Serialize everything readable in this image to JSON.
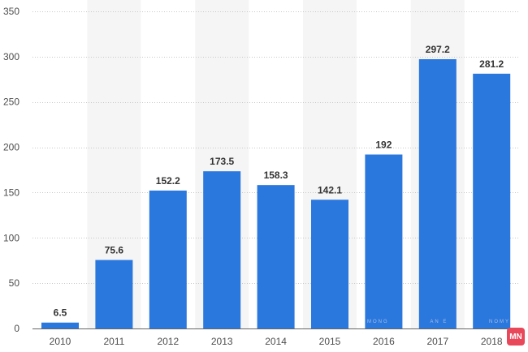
{
  "chart_data": {
    "type": "bar",
    "categories": [
      "2010",
      "2011",
      "2012",
      "2013",
      "2014",
      "2015",
      "2016",
      "2017",
      "2018"
    ],
    "values": [
      6.5,
      75.6,
      152.2,
      173.5,
      158.3,
      142.1,
      192,
      297.2,
      281.2
    ],
    "value_labels": [
      "6.5",
      "75.6",
      "152.2",
      "173.5",
      "158.3",
      "142.1",
      "192",
      "297.2",
      "281.2"
    ],
    "y_ticks": [
      0,
      50,
      100,
      150,
      200,
      250,
      300,
      350
    ],
    "ylim": [
      0,
      350
    ],
    "grid": true,
    "bar_color": "#2a77de",
    "title": "",
    "xlabel": "",
    "ylabel": ""
  },
  "watermark": {
    "words": [
      "MONG",
      "AN E",
      "NOMY"
    ],
    "badge_text": "MN"
  }
}
